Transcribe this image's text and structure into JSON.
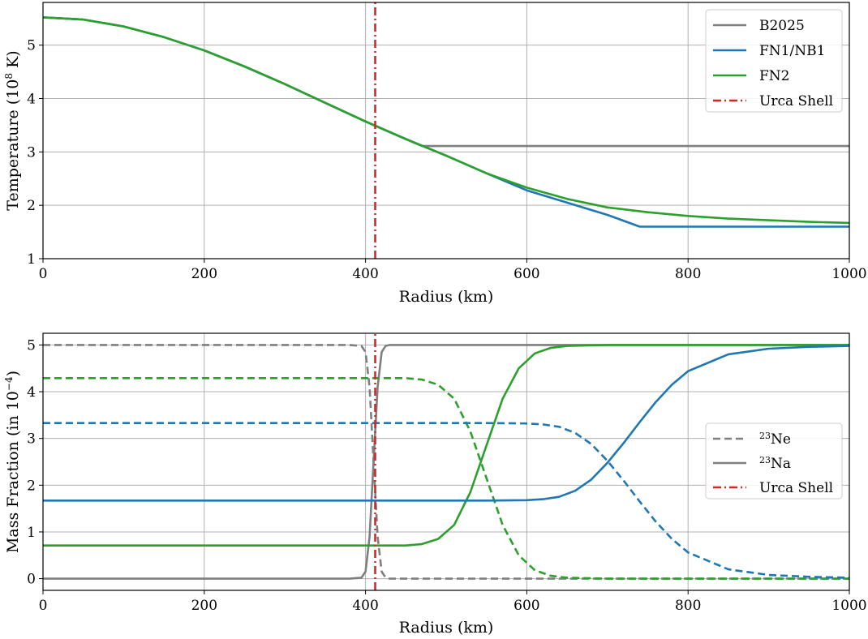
{
  "chart_data": [
    {
      "type": "line",
      "title": "",
      "xlabel": "Radius (km)",
      "ylabel": "Temperature (10",
      "ylabel_exponent": "8",
      "ylabel_unit": " K)",
      "xlim": [
        0,
        1000
      ],
      "ylim": [
        1,
        5.8
      ],
      "xticks": [
        0,
        200,
        400,
        600,
        800,
        1000
      ],
      "yticks": [
        1,
        2,
        3,
        4,
        5
      ],
      "grid": true,
      "legend_position": "top-right",
      "series": [
        {
          "name": "B2025",
          "color": "#7f7f7f",
          "style": "solid",
          "x": [
            0,
            50,
            100,
            150,
            200,
            250,
            300,
            350,
            400,
            450,
            470,
            500,
            600,
            700,
            800,
            900,
            1000
          ],
          "y": [
            5.52,
            5.48,
            5.35,
            5.15,
            4.9,
            4.6,
            4.27,
            3.92,
            3.57,
            3.24,
            3.11,
            3.11,
            3.11,
            3.11,
            3.11,
            3.11,
            3.11
          ]
        },
        {
          "name": "FN1/NB1",
          "color": "#1f77b4",
          "style": "solid",
          "x": [
            0,
            50,
            100,
            150,
            200,
            250,
            300,
            350,
            400,
            450,
            500,
            550,
            600,
            650,
            700,
            740,
            800,
            900,
            1000
          ],
          "y": [
            5.52,
            5.48,
            5.35,
            5.15,
            4.9,
            4.6,
            4.27,
            3.92,
            3.57,
            3.24,
            2.93,
            2.6,
            2.28,
            2.05,
            1.82,
            1.6,
            1.6,
            1.6,
            1.6
          ]
        },
        {
          "name": "FN2",
          "color": "#2ca02c",
          "style": "solid",
          "x": [
            0,
            50,
            100,
            150,
            200,
            250,
            300,
            350,
            400,
            450,
            500,
            550,
            600,
            650,
            700,
            750,
            800,
            850,
            900,
            950,
            1000
          ],
          "y": [
            5.52,
            5.48,
            5.35,
            5.15,
            4.9,
            4.6,
            4.27,
            3.92,
            3.57,
            3.24,
            2.93,
            2.6,
            2.33,
            2.12,
            1.96,
            1.87,
            1.8,
            1.75,
            1.72,
            1.69,
            1.67
          ]
        },
        {
          "name": "Urca Shell",
          "color": "#d62728",
          "style": "dashdot",
          "x": [
            412,
            412
          ],
          "y": [
            1,
            5.8
          ]
        }
      ]
    },
    {
      "type": "line",
      "title": "",
      "xlabel": "Radius (km)",
      "ylabel": "Mass Fraction (in 10",
      "ylabel_exponent": "−4",
      "ylabel_unit": ")",
      "xlim": [
        0,
        1000
      ],
      "ylim": [
        -0.25,
        5.25
      ],
      "xticks": [
        0,
        200,
        400,
        600,
        800,
        1000
      ],
      "yticks": [
        0,
        1,
        2,
        3,
        4,
        5
      ],
      "grid": true,
      "legend_position": "center-right",
      "legend": [
        {
          "sup": "23",
          "text": "Ne",
          "color": "#7f7f7f",
          "style": "dashed"
        },
        {
          "sup": "23",
          "text": "Na",
          "color": "#7f7f7f",
          "style": "solid"
        },
        {
          "sup": "",
          "text": "Urca Shell",
          "color": "#d62728",
          "style": "dashdot"
        }
      ],
      "series": [
        {
          "species": "Ne23",
          "color": "#7f7f7f",
          "style": "dashed",
          "x": [
            0,
            380,
            395,
            400,
            405,
            410,
            415,
            420,
            425,
            430,
            500,
            1000
          ],
          "y": [
            5.0,
            5.0,
            4.98,
            4.85,
            4.1,
            2.5,
            0.9,
            0.15,
            0.02,
            0.0,
            0.0,
            0.0
          ]
        },
        {
          "species": "Na23",
          "color": "#7f7f7f",
          "style": "solid",
          "x": [
            0,
            380,
            395,
            400,
            405,
            410,
            415,
            420,
            425,
            430,
            500,
            1000
          ],
          "y": [
            0.0,
            0.0,
            0.02,
            0.15,
            0.9,
            2.5,
            4.1,
            4.85,
            4.98,
            5.0,
            5.0,
            5.0
          ]
        },
        {
          "species": "Ne23",
          "color": "#2ca02c",
          "style": "dashed",
          "x": [
            0,
            400,
            450,
            470,
            490,
            510,
            530,
            550,
            570,
            590,
            610,
            630,
            650,
            700,
            1000
          ],
          "y": [
            4.29,
            4.29,
            4.29,
            4.26,
            4.15,
            3.85,
            3.15,
            2.15,
            1.15,
            0.5,
            0.18,
            0.06,
            0.02,
            0.0,
            0.0
          ]
        },
        {
          "species": "Na23",
          "color": "#2ca02c",
          "style": "solid",
          "x": [
            0,
            400,
            450,
            470,
            490,
            510,
            530,
            550,
            570,
            590,
            610,
            630,
            650,
            700,
            1000
          ],
          "y": [
            0.71,
            0.71,
            0.71,
            0.74,
            0.85,
            1.15,
            1.85,
            2.85,
            3.85,
            4.5,
            4.82,
            4.94,
            4.98,
            5.0,
            5.0
          ]
        },
        {
          "species": "Ne23",
          "color": "#1f77b4",
          "style": "dashed",
          "x": [
            0,
            500,
            550,
            600,
            620,
            640,
            660,
            680,
            700,
            720,
            740,
            760,
            780,
            800,
            850,
            900,
            950,
            1000
          ],
          "y": [
            3.33,
            3.33,
            3.33,
            3.32,
            3.3,
            3.25,
            3.12,
            2.88,
            2.52,
            2.1,
            1.65,
            1.22,
            0.85,
            0.56,
            0.2,
            0.08,
            0.04,
            0.02
          ]
        },
        {
          "species": "Na23",
          "color": "#1f77b4",
          "style": "solid",
          "x": [
            0,
            500,
            550,
            600,
            620,
            640,
            660,
            680,
            700,
            720,
            740,
            760,
            780,
            800,
            850,
            900,
            950,
            1000
          ],
          "y": [
            1.67,
            1.67,
            1.67,
            1.68,
            1.7,
            1.75,
            1.88,
            2.12,
            2.48,
            2.9,
            3.35,
            3.78,
            4.15,
            4.44,
            4.8,
            4.92,
            4.96,
            4.98
          ]
        },
        {
          "species": "Urca Shell",
          "color": "#d62728",
          "style": "dashdot",
          "x": [
            412,
            412
          ],
          "y": [
            -0.25,
            5.25
          ]
        }
      ]
    }
  ]
}
